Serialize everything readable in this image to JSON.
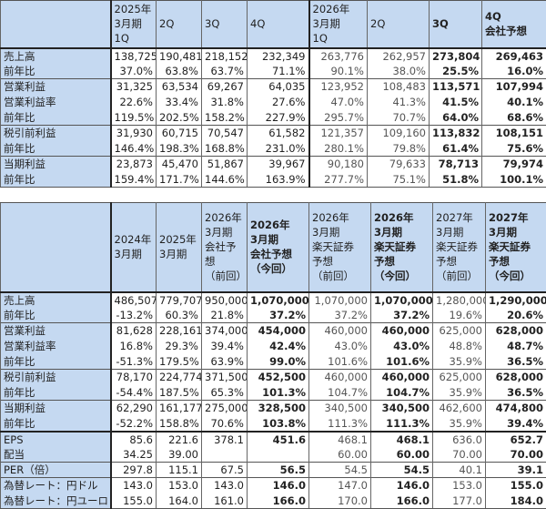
{
  "quarterly_table": {
    "columns": [
      {
        "label": "2025年\n3月期\n1Q",
        "bold": false
      },
      {
        "label": "2Q",
        "bold": false
      },
      {
        "label": "3Q",
        "bold": false
      },
      {
        "label": "4Q",
        "bold": false
      },
      {
        "label": "2026年\n3月期\n1Q",
        "bold": false
      },
      {
        "label": "2Q",
        "bold": false
      },
      {
        "label": "3Q",
        "bold": true
      },
      {
        "label": "4Q\n会社予想",
        "bold": true
      }
    ],
    "rows": [
      {
        "label": "売上高",
        "values": [
          "138,725",
          "190,481",
          "218,152",
          "232,349",
          "263,776",
          "262,957",
          "273,804",
          "269,463"
        ]
      },
      {
        "label": "前年比",
        "values": [
          "37.0%",
          "63.8%",
          "63.7%",
          "71.1%",
          "90.1%",
          "38.0%",
          "25.5%",
          "16.0%"
        ]
      },
      {
        "label": "営業利益",
        "values": [
          "31,325",
          "63,534",
          "69,267",
          "64,035",
          "123,952",
          "108,483",
          "113,571",
          "107,994"
        ]
      },
      {
        "label": "営業利益率",
        "values": [
          "22.6%",
          "33.4%",
          "31.8%",
          "27.6%",
          "47.0%",
          "41.3%",
          "41.5%",
          "40.1%"
        ]
      },
      {
        "label": "前年比",
        "values": [
          "119.5%",
          "202.5%",
          "158.2%",
          "227.9%",
          "295.7%",
          "70.7%",
          "64.0%",
          "68.6%"
        ]
      },
      {
        "label": "税引前利益",
        "values": [
          "31,930",
          "60,715",
          "70,547",
          "61,582",
          "121,357",
          "109,160",
          "113,832",
          "108,151"
        ]
      },
      {
        "label": "前年比",
        "values": [
          "146.4%",
          "198.3%",
          "168.8%",
          "231.0%",
          "280.1%",
          "79.8%",
          "61.4%",
          "75.6%"
        ]
      },
      {
        "label": "当期利益",
        "values": [
          "23,873",
          "45,470",
          "51,867",
          "39,967",
          "90,180",
          "79,633",
          "78,713",
          "79,974"
        ]
      },
      {
        "label": "前年比",
        "values": [
          "159.4%",
          "171.7%",
          "144.6%",
          "163.9%",
          "277.7%",
          "75.1%",
          "51.8%",
          "100.1%"
        ]
      }
    ]
  },
  "annual_table": {
    "columns": [
      {
        "label": "2024年\n3月期",
        "bold": false
      },
      {
        "label": "2025年\n3月期",
        "bold": false
      },
      {
        "label": "2026年\n3月期\n会社予想\n（前回）",
        "bold": false
      },
      {
        "label": "2026年\n3月期\n会社予想\n（今回）",
        "bold": true
      },
      {
        "label": "2026年\n3月期\n楽天証券\n予想\n（前回）",
        "bold": false
      },
      {
        "label": "2026年\n3月期\n楽天証券\n予想\n（今回）",
        "bold": true
      },
      {
        "label": "2027年\n3月期\n楽天証券\n予想\n（前回）",
        "bold": false
      },
      {
        "label": "2027年\n3月期\n楽天証券\n予想\n（今回）",
        "bold": true
      }
    ],
    "rows": [
      {
        "label": "売上高",
        "values": [
          "486,507",
          "779,707",
          "950,000",
          "1,070,000",
          "1,070,000",
          "1,070,000",
          "1,280,000",
          "1,290,000"
        ]
      },
      {
        "label": "前年比",
        "values": [
          "-13.2%",
          "60.3%",
          "21.8%",
          "37.2%",
          "37.2%",
          "37.2%",
          "19.6%",
          "20.6%"
        ]
      },
      {
        "label": "営業利益",
        "values": [
          "81,628",
          "228,161",
          "374,000",
          "454,000",
          "460,000",
          "460,000",
          "625,000",
          "628,000"
        ]
      },
      {
        "label": "営業利益率",
        "values": [
          "16.8%",
          "29.3%",
          "39.4%",
          "42.4%",
          "43.0%",
          "43.0%",
          "48.8%",
          "48.7%"
        ]
      },
      {
        "label": "前年比",
        "values": [
          "-51.3%",
          "179.5%",
          "63.9%",
          "99.0%",
          "101.6%",
          "101.6%",
          "35.9%",
          "36.5%"
        ]
      },
      {
        "label": "税引前利益",
        "values": [
          "78,170",
          "224,774",
          "371,500",
          "452,500",
          "460,000",
          "460,000",
          "625,000",
          "628,000"
        ]
      },
      {
        "label": "前年比",
        "values": [
          "-54.4%",
          "187.5%",
          "65.3%",
          "101.3%",
          "104.7%",
          "104.7%",
          "35.9%",
          "36.5%"
        ]
      },
      {
        "label": "当期利益",
        "values": [
          "62,290",
          "161,177",
          "275,000",
          "328,500",
          "340,500",
          "340,500",
          "462,600",
          "474,800"
        ]
      },
      {
        "label": "前年比",
        "values": [
          "-52.2%",
          "158.8%",
          "70.6%",
          "103.8%",
          "111.3%",
          "111.3%",
          "35.9%",
          "39.4%"
        ]
      },
      {
        "label": "EPS",
        "values": [
          "85.6",
          "221.6",
          "378.1",
          "451.6",
          "468.1",
          "468.1",
          "636.0",
          "652.7"
        ]
      },
      {
        "label": "配当",
        "values": [
          "34.25",
          "39.00",
          "",
          "",
          "60.00",
          "60.00",
          "70.00",
          "70.00"
        ]
      },
      {
        "label": "PER（倍）",
        "values": [
          "297.8",
          "115.1",
          "67.5",
          "56.5",
          "54.5",
          "54.5",
          "40.1",
          "39.1"
        ]
      },
      {
        "label": "為替レート：円ドル",
        "values": [
          "143.0",
          "153.0",
          "143.0",
          "146.0",
          "147.0",
          "146.0",
          "153.0",
          "155.0"
        ]
      },
      {
        "label": "為替レート：円ユーロ",
        "values": [
          "155.0",
          "164.0",
          "161.0",
          "166.0",
          "170.0",
          "166.0",
          "177.0",
          "184.0"
        ]
      }
    ]
  },
  "colors": {
    "header_bg": "#c5d9f1",
    "border_dark": "#222222",
    "text_prior_estimate": "#555555"
  }
}
